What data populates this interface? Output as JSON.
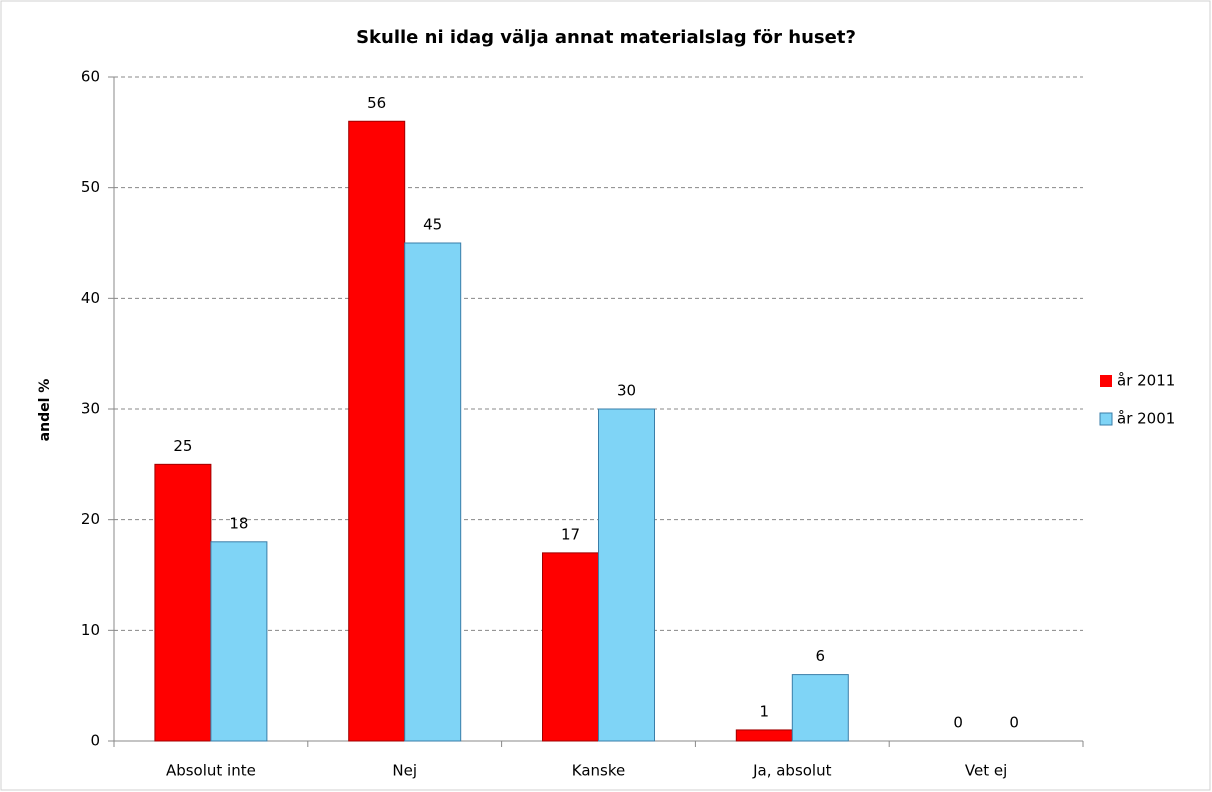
{
  "chart_data": {
    "type": "bar",
    "title": "Skulle ni idag välja annat materialslag för huset?",
    "y_label": "andel %",
    "categories": [
      "Absolut inte",
      "Nej",
      "Kanske",
      "Ja, absolut",
      "Vet ej"
    ],
    "series": [
      {
        "name": "år 2011",
        "color": "#ff0000",
        "values": [
          25,
          56,
          17,
          1,
          0
        ]
      },
      {
        "name": "år 2001",
        "color": "#7fd4f6",
        "values": [
          18,
          45,
          30,
          6,
          0
        ]
      }
    ],
    "ylim": [
      0,
      60
    ],
    "yticks": [
      0,
      10,
      20,
      30,
      40,
      50,
      60
    ],
    "grid": true,
    "legend": "right"
  }
}
